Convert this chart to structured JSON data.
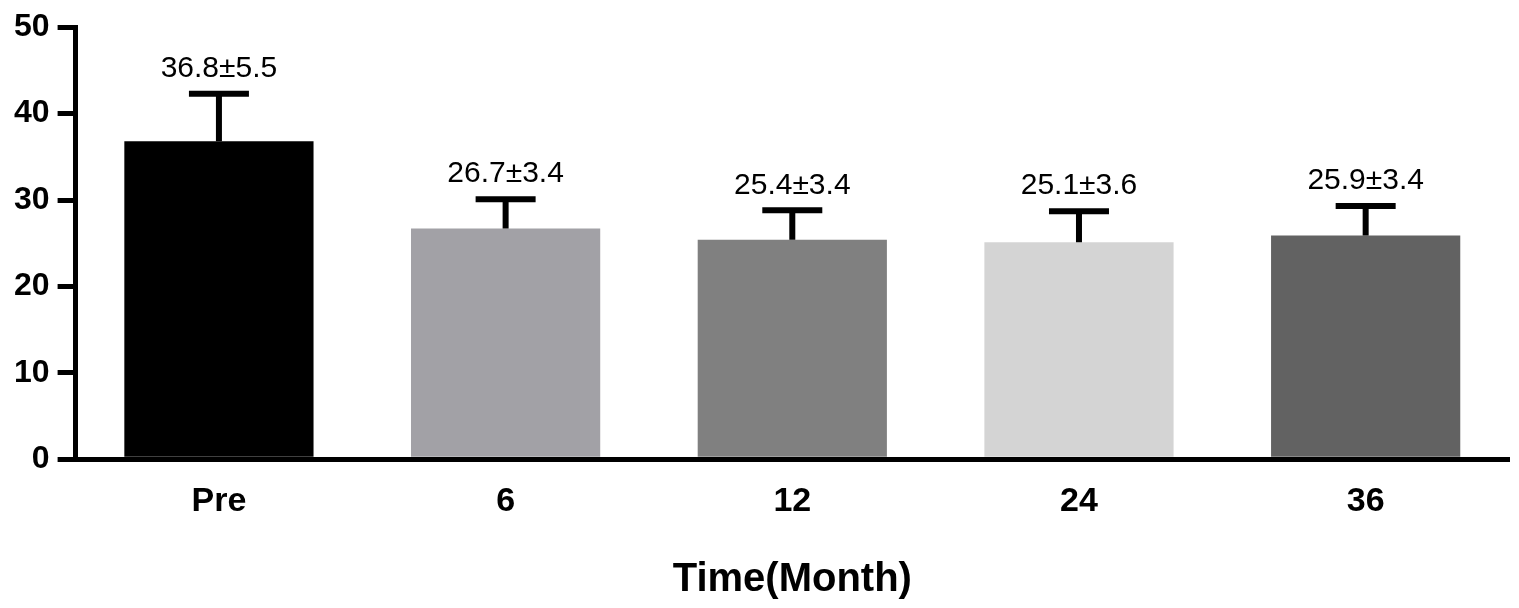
{
  "chart_data": {
    "type": "bar",
    "xlabel": "Time(Month)",
    "categories": [
      "Pre",
      "6",
      "12",
      "24",
      "36"
    ],
    "values": [
      36.8,
      26.7,
      25.4,
      25.1,
      25.9
    ],
    "errors": [
      5.5,
      3.4,
      3.4,
      3.6,
      3.4
    ],
    "colors": [
      "#000000",
      "#a2a1a6",
      "#808080",
      "#d4d4d4",
      "#626262"
    ],
    "value_labels": [
      "36.8±5.5",
      "26.7±3.4",
      "25.4±3.4",
      "25.1±3.6",
      "25.9±3.4"
    ],
    "ylim": [
      0,
      50
    ],
    "yticks": [
      0,
      10,
      20,
      30,
      40,
      50
    ]
  }
}
